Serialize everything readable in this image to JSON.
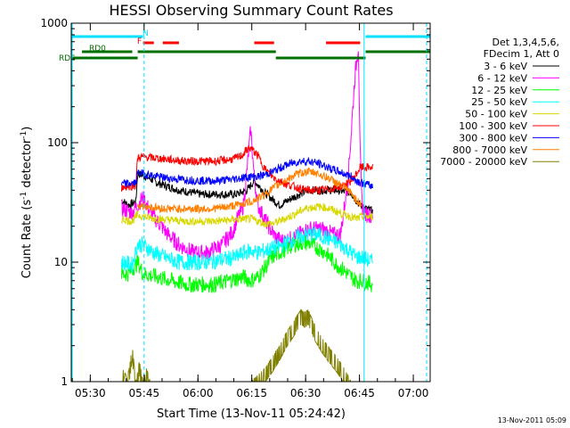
{
  "chart_data": {
    "type": "line",
    "title": "HESSI Observing Summary Count Rates",
    "xlabel": "Start Time (13-Nov-11 05:24:42)",
    "ylabel": "Count Rate (s",
    "ylabel_sup": "-1",
    "ylabel_rest": " detector",
    "ylabel_sup2": "-1",
    "ylabel_end": ")",
    "yscale": "log",
    "ylim": [
      1,
      1000
    ],
    "xlim_minutes": [
      0,
      100
    ],
    "x_ticks": [
      {
        "label": "05:30",
        "min": 5.3
      },
      {
        "label": "05:45",
        "min": 20.3
      },
      {
        "label": "06:00",
        "min": 35.3
      },
      {
        "label": "06:15",
        "min": 50.3
      },
      {
        "label": "06:30",
        "min": 65.3
      },
      {
        "label": "06:45",
        "min": 80.3
      },
      {
        "label": "07:00",
        "min": 95.3
      }
    ],
    "y_ticks": [
      {
        "label": "1",
        "v": 1
      },
      {
        "label": "10",
        "v": 10
      },
      {
        "label": "100",
        "v": 100
      },
      {
        "label": "1000",
        "v": 1000
      }
    ],
    "legend_header": [
      "Det 1,3,4,5,6,",
      "FDecim 1, Att 0"
    ],
    "legend_placement": "right",
    "series": [
      {
        "name": "3 - 6 keV",
        "color": "#000000",
        "x": [
          14,
          16,
          18,
          18.5,
          21,
          24,
          30,
          36,
          42,
          46,
          49,
          51,
          54,
          58,
          62,
          66,
          70,
          74,
          78,
          79,
          80.5,
          82,
          84
        ],
        "y": [
          33,
          30,
          32,
          55,
          52,
          46,
          40,
          37,
          37,
          37,
          40,
          48,
          38,
          30,
          35,
          40,
          40,
          40,
          38,
          34,
          30,
          28,
          27
        ]
      },
      {
        "name": "6 - 12 keV",
        "color": "#ff00ff",
        "x": [
          14,
          17,
          18.5,
          20,
          22,
          24,
          27,
          30,
          34,
          38,
          42,
          45,
          46,
          48,
          49,
          50,
          51,
          52,
          53,
          55,
          57,
          59,
          62,
          66,
          70,
          73,
          75,
          77,
          78,
          79,
          80,
          80.5,
          81,
          82,
          84
        ],
        "y": [
          28,
          26,
          30,
          35,
          26,
          22,
          17,
          14,
          12,
          12,
          14,
          18,
          22,
          30,
          60,
          130,
          50,
          30,
          26,
          20,
          16,
          15,
          16,
          19,
          19,
          17,
          17,
          45,
          120,
          350,
          650,
          80,
          30,
          25,
          25
        ]
      },
      {
        "name": "12 - 25 keV",
        "color": "#00ff00",
        "x": [
          14,
          16,
          18.5,
          20,
          24,
          28,
          32,
          36,
          40,
          44,
          48,
          50,
          52,
          54,
          56,
          58,
          60,
          62,
          64,
          66,
          68,
          70,
          72,
          74,
          76,
          78,
          79.5,
          81,
          84
        ],
        "y": [
          8,
          8,
          10,
          8,
          7.5,
          7,
          6.5,
          6.5,
          6.5,
          7,
          7.5,
          7,
          7.5,
          9,
          11,
          12,
          13,
          14,
          14.5,
          14.5,
          13.5,
          12.5,
          11,
          9.5,
          8.5,
          7.5,
          7,
          7,
          6.5
        ]
      },
      {
        "name": "25 - 50 keV",
        "color": "#00ffff",
        "x": [
          14,
          17,
          18.5,
          20,
          23,
          26,
          30,
          34,
          38,
          42,
          46,
          48,
          50,
          52,
          54,
          56,
          58,
          60,
          62,
          64,
          66,
          68,
          70,
          72,
          74,
          76,
          78,
          79.5,
          81,
          84
        ],
        "y": [
          10,
          9.5,
          14,
          14,
          12,
          11,
          10,
          10,
          10,
          10.5,
          11,
          12,
          12.5,
          12,
          12.5,
          13,
          13.5,
          14.5,
          15.5,
          16.5,
          17,
          17,
          16.5,
          15.5,
          14.5,
          13.5,
          12,
          11,
          11,
          10
        ]
      },
      {
        "name": "50 - 100 keV",
        "color": "#d8d800",
        "x": [
          14,
          17,
          18.5,
          20,
          24,
          28,
          32,
          36,
          40,
          44,
          48,
          50,
          52,
          54,
          56,
          58,
          60,
          62,
          64,
          66,
          68,
          70,
          72,
          74,
          76,
          78,
          79.5,
          81,
          84
        ],
        "y": [
          23,
          22,
          25,
          24,
          23,
          22.5,
          22,
          22,
          22,
          22.5,
          23,
          23,
          22,
          21,
          21,
          22,
          23.5,
          25,
          27,
          28.5,
          29,
          29,
          28,
          26.5,
          25,
          24,
          23,
          24,
          24
        ]
      },
      {
        "name": "100 - 300 keV",
        "color": "#ff0000",
        "x": [
          14,
          18,
          18.5,
          20,
          24,
          28,
          32,
          36,
          40,
          44,
          46,
          48,
          49,
          50,
          52,
          54,
          56,
          58,
          60,
          62,
          64,
          66,
          68,
          70,
          72,
          74,
          76,
          78,
          79.5,
          80.5,
          81,
          84
        ],
        "y": [
          42,
          44,
          75,
          76,
          74,
          72,
          70,
          70,
          70,
          72,
          74,
          80,
          88,
          90,
          78,
          60,
          52,
          48,
          45,
          43,
          41,
          40,
          40,
          40,
          41,
          42,
          44,
          48,
          55,
          62,
          62,
          62
        ]
      },
      {
        "name": "300 - 800 keV",
        "color": "#0000ff",
        "x": [
          14,
          18,
          18.5,
          20,
          24,
          28,
          32,
          36,
          40,
          44,
          48,
          50,
          52,
          54,
          56,
          58,
          60,
          62,
          64,
          66,
          68,
          70,
          72,
          74,
          76,
          78,
          79.5,
          81,
          84
        ],
        "y": [
          45,
          46,
          56,
          55,
          52,
          50,
          49,
          48,
          48,
          49,
          51,
          52,
          52,
          54,
          57,
          61,
          65,
          68,
          70,
          70,
          68,
          65,
          61,
          58,
          55,
          52,
          48,
          46,
          43
        ]
      },
      {
        "name": "800 - 7000 keV",
        "color": "#ff8000",
        "x": [
          18.5,
          22,
          26,
          30,
          34,
          38,
          42,
          46,
          48,
          50,
          52,
          54,
          56,
          58,
          60,
          62,
          64,
          66,
          68,
          70,
          72,
          74,
          76,
          78,
          79.5,
          81
        ],
        "y": [
          30,
          29,
          28,
          28,
          28,
          28,
          28.5,
          30,
          31,
          32,
          34,
          37,
          41,
          45,
          49,
          53,
          56,
          57,
          56,
          53,
          50,
          46,
          42,
          38,
          33,
          30
        ]
      },
      {
        "name": "7000 - 20000 keV",
        "color": "#808000",
        "x": [
          14,
          15,
          16,
          17,
          18,
          19,
          20,
          21,
          22,
          50,
          54,
          56,
          58,
          60,
          62,
          63,
          64,
          65,
          66,
          67,
          68,
          70,
          72,
          74,
          76,
          78
        ],
        "y": [
          1,
          1.6,
          1.2,
          2,
          1,
          1.5,
          1,
          1.3,
          1,
          1,
          1.3,
          1.6,
          2,
          2.6,
          3.2,
          3.6,
          4,
          3.8,
          4,
          3.4,
          2.9,
          2.3,
          1.9,
          1.6,
          1.3,
          1
        ]
      }
    ],
    "intervals": [
      {
        "label": "N",
        "color": "#00e0ff",
        "segments": [
          [
            0,
            20
          ],
          [
            82,
            100
          ]
        ]
      },
      {
        "label": "F",
        "color": "#ff0000",
        "segments": [
          [
            20,
            23
          ],
          [
            25.5,
            30
          ],
          [
            51,
            56.5
          ],
          [
            71,
            80.5
          ]
        ]
      },
      {
        "label": "RD0",
        "color": "#007000",
        "segments": [
          [
            3,
            17
          ],
          [
            18.5,
            57
          ],
          [
            82,
            100
          ]
        ]
      },
      {
        "label": "RDS",
        "color": "#007000",
        "segments": [
          [
            0,
            18.5
          ],
          [
            57,
            82
          ]
        ]
      }
    ],
    "vertical_markers_minutes": [
      20.3,
      81.6,
      99
    ],
    "grid": false
  },
  "stamp": "13-Nov-2011 05:09"
}
